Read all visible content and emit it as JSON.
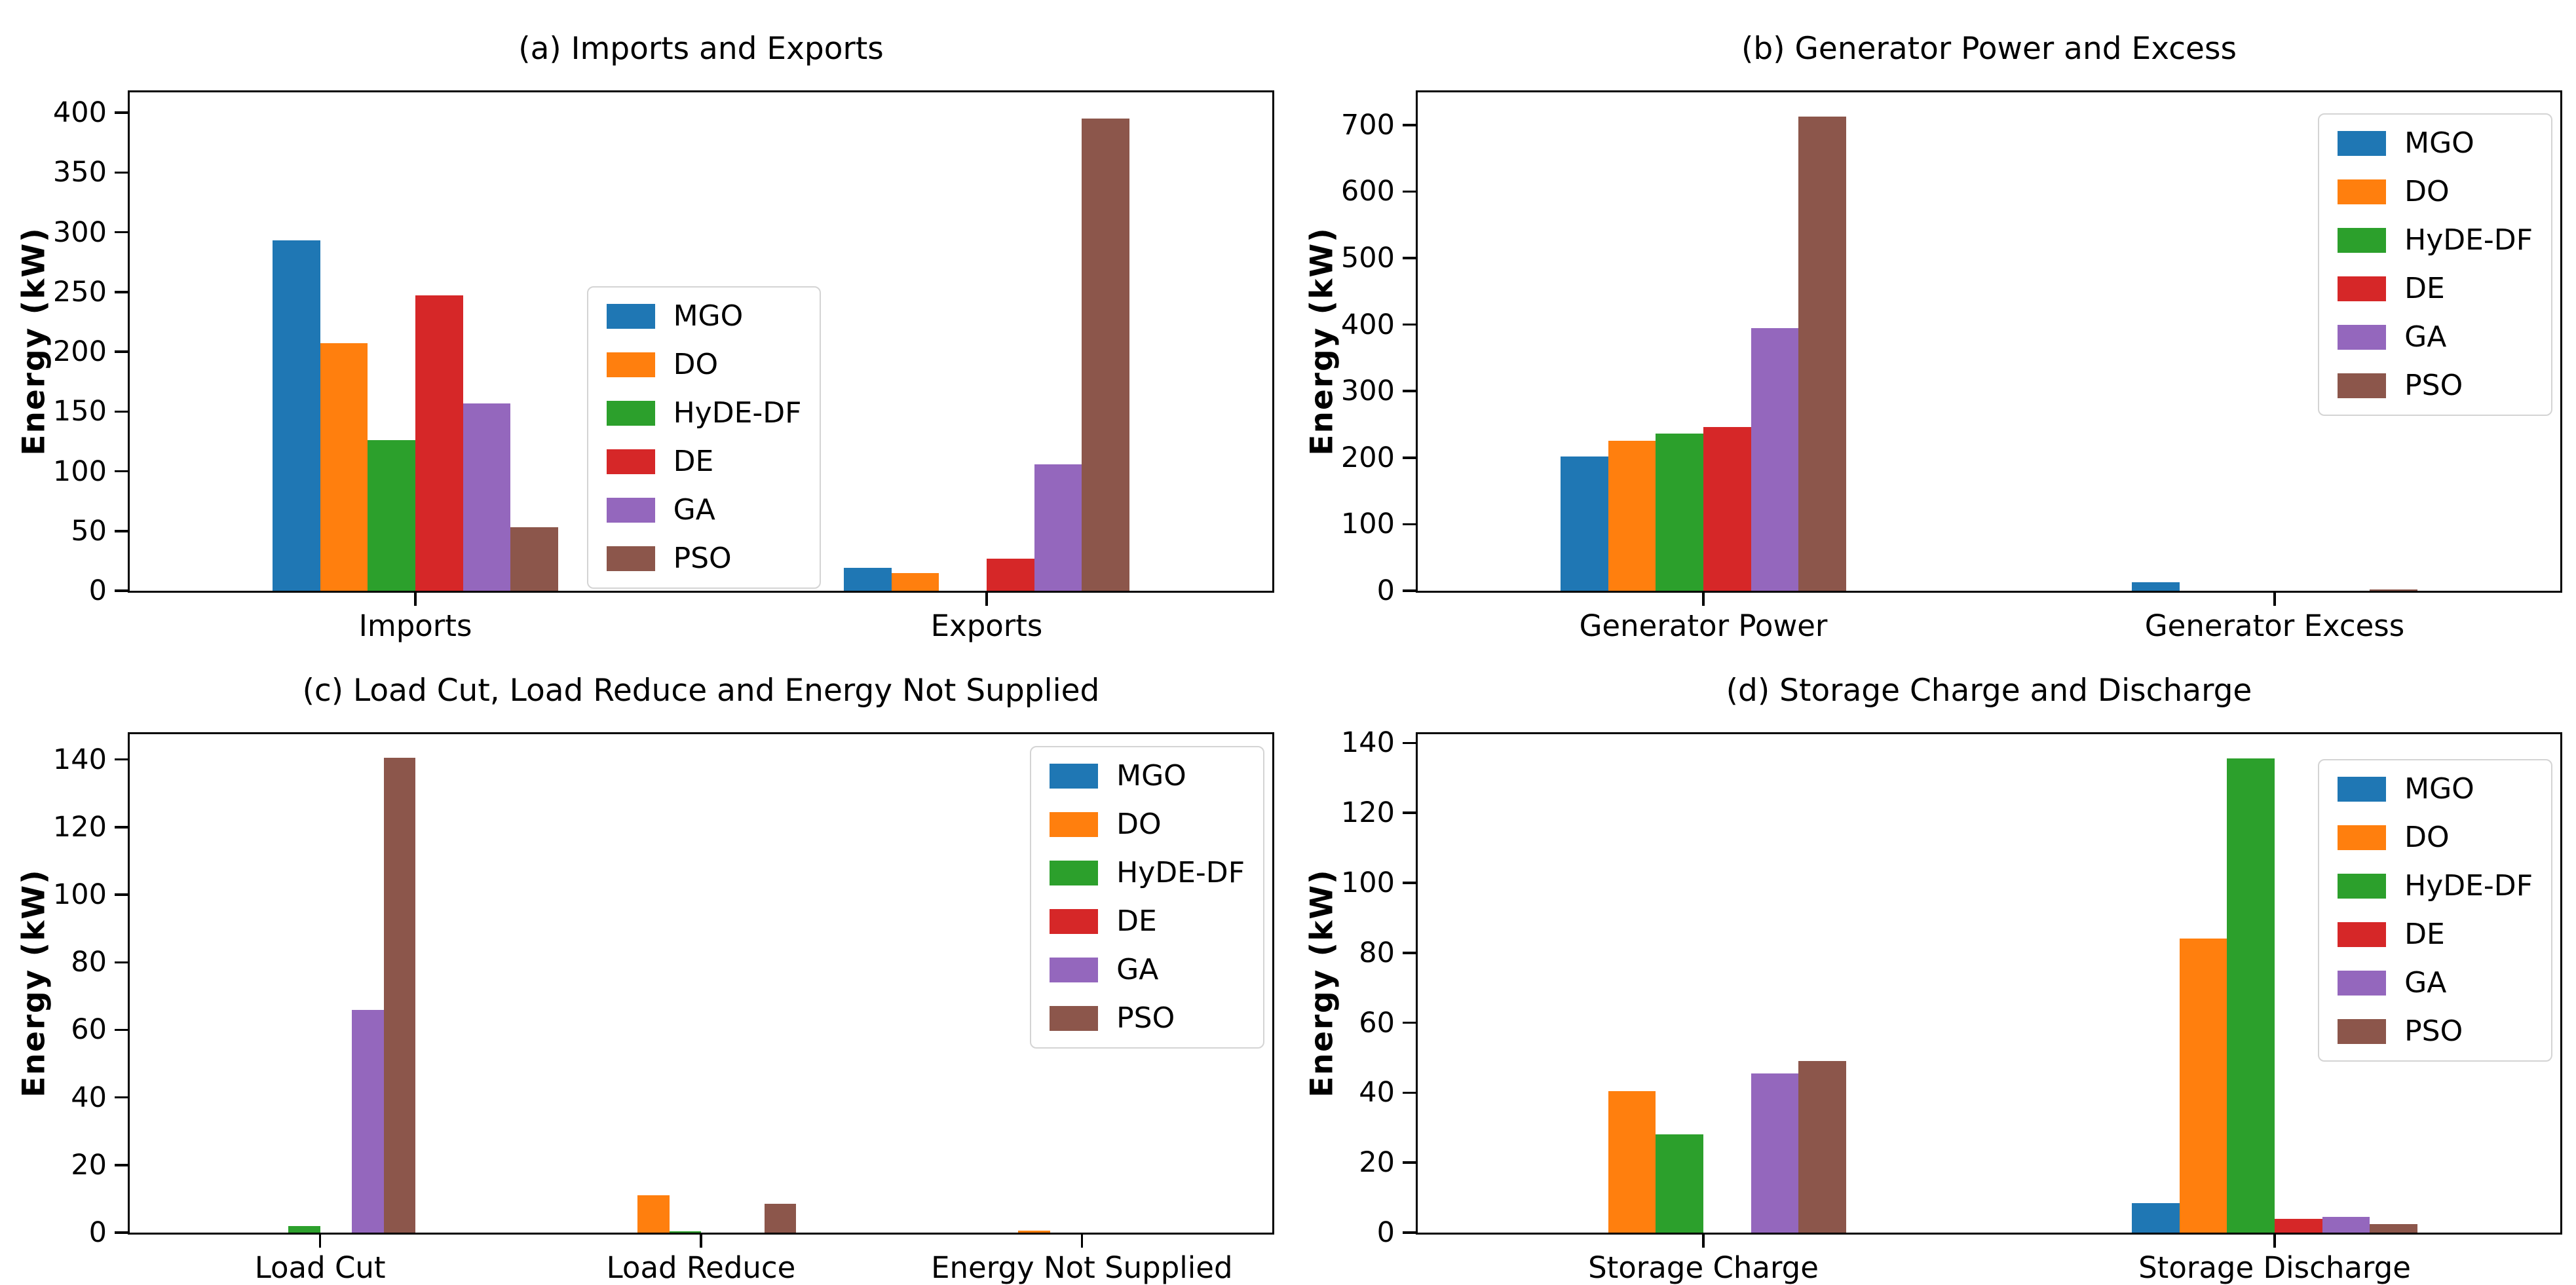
{
  "figure": {
    "background": "#ffffff",
    "axis_color": "#000000"
  },
  "palette": {
    "MGO": "#1f77b4",
    "DO": "#ff7f0e",
    "HyDE-DF": "#2ca02c",
    "DE": "#d62728",
    "GA": "#9467bd",
    "PSO": "#8c564b"
  },
  "chart_data": [
    {
      "type": "bar",
      "title": "(a) Imports and Exports",
      "xlabel": "",
      "ylabel": "Energy (kW)",
      "categories": [
        "Imports",
        "Exports"
      ],
      "series": [
        {
          "name": "MGO",
          "color": "#1f77b4",
          "values": [
            293,
            19
          ]
        },
        {
          "name": "DO",
          "color": "#ff7f0e",
          "values": [
            207,
            15
          ]
        },
        {
          "name": "HyDE-DF",
          "color": "#2ca02c",
          "values": [
            126,
            0
          ]
        },
        {
          "name": "DE",
          "color": "#d62728",
          "values": [
            247,
            27
          ]
        },
        {
          "name": "GA",
          "color": "#9467bd",
          "values": [
            157,
            106
          ]
        },
        {
          "name": "PSO",
          "color": "#8c564b",
          "values": [
            53,
            395
          ]
        }
      ],
      "ylim": [
        0,
        417
      ],
      "yticks": [
        0,
        50,
        100,
        150,
        200,
        250,
        300,
        350,
        400
      ],
      "grid": false,
      "legend_position": "lower-center"
    },
    {
      "type": "bar",
      "title": "(b) Generator Power and Excess",
      "xlabel": "",
      "ylabel": "Energy (kW)",
      "categories": [
        "Generator Power",
        "Generator Excess"
      ],
      "series": [
        {
          "name": "MGO",
          "color": "#1f77b4",
          "values": [
            202,
            13
          ]
        },
        {
          "name": "DO",
          "color": "#ff7f0e",
          "values": [
            225,
            0
          ]
        },
        {
          "name": "HyDE-DF",
          "color": "#2ca02c",
          "values": [
            236,
            0
          ]
        },
        {
          "name": "DE",
          "color": "#d62728",
          "values": [
            246,
            0
          ]
        },
        {
          "name": "GA",
          "color": "#9467bd",
          "values": [
            395,
            0
          ]
        },
        {
          "name": "PSO",
          "color": "#8c564b",
          "values": [
            713,
            2
          ]
        }
      ],
      "ylim": [
        0,
        749
      ],
      "yticks": [
        0,
        100,
        200,
        300,
        400,
        500,
        600,
        700
      ],
      "grid": false,
      "legend_position": "upper-right"
    },
    {
      "type": "bar",
      "title": "(c) Load Cut, Load Reduce and Energy Not Supplied",
      "xlabel": "",
      "ylabel": "Energy (kW)",
      "categories": [
        "Load Cut",
        "Load Reduce",
        "Energy Not Supplied"
      ],
      "series": [
        {
          "name": "MGO",
          "color": "#1f77b4",
          "values": [
            0,
            0,
            0
          ]
        },
        {
          "name": "DO",
          "color": "#ff7f0e",
          "values": [
            0,
            11,
            0.5
          ]
        },
        {
          "name": "HyDE-DF",
          "color": "#2ca02c",
          "values": [
            2,
            0.4,
            0
          ]
        },
        {
          "name": "DE",
          "color": "#d62728",
          "values": [
            0,
            0,
            0
          ]
        },
        {
          "name": "GA",
          "color": "#9467bd",
          "values": [
            66,
            0,
            0
          ]
        },
        {
          "name": "PSO",
          "color": "#8c564b",
          "values": [
            140.5,
            8.5,
            0
          ]
        }
      ],
      "ylim": [
        0,
        147.5
      ],
      "yticks": [
        0,
        20,
        40,
        60,
        80,
        100,
        120,
        140
      ],
      "grid": false,
      "legend_position": "upper-right"
    },
    {
      "type": "bar",
      "title": "(d) Storage Charge and Discharge",
      "xlabel": "",
      "ylabel": "Energy (kW)",
      "categories": [
        "Storage Charge",
        "Storage Discharge"
      ],
      "series": [
        {
          "name": "MGO",
          "color": "#1f77b4",
          "values": [
            0,
            8.5
          ]
        },
        {
          "name": "DO",
          "color": "#ff7f0e",
          "values": [
            40.5,
            84
          ]
        },
        {
          "name": "HyDE-DF",
          "color": "#2ca02c",
          "values": [
            28,
            135.5
          ]
        },
        {
          "name": "DE",
          "color": "#d62728",
          "values": [
            0,
            4
          ]
        },
        {
          "name": "GA",
          "color": "#9467bd",
          "values": [
            45.5,
            4.5
          ]
        },
        {
          "name": "PSO",
          "color": "#8c564b",
          "values": [
            49,
            2.5
          ]
        }
      ],
      "ylim": [
        0,
        142.5
      ],
      "yticks": [
        0,
        20,
        40,
        60,
        80,
        100,
        120,
        140
      ],
      "grid": false,
      "legend_position": "upper-right"
    }
  ]
}
